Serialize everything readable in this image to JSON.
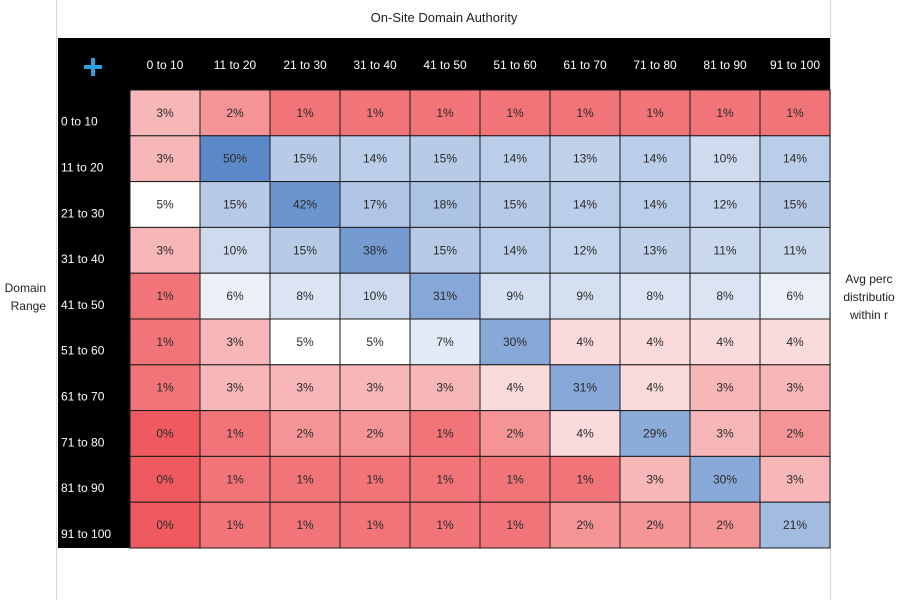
{
  "chart_data": {
    "type": "heatmap",
    "title": "On-Site Domain Authority",
    "ylabel": "Domain\nRange",
    "right_label": "Avg perc\ndistributio\nwithin r",
    "corner_icon": "plus-icon",
    "x_categories": [
      "0 to 10",
      "11 to 20",
      "21 to 30",
      "31 to 40",
      "41 to 50",
      "51 to 60",
      "61 to 70",
      "71 to 80",
      "81 to 90",
      "91 to 100"
    ],
    "y_categories": [
      "0 to 10",
      "11 to 20",
      "21 to 30",
      "31 to 40",
      "41 to 50",
      "51 to 60",
      "61 to 70",
      "71 to 80",
      "81 to 90",
      "91 to 100"
    ],
    "values": [
      [
        3,
        2,
        1,
        1,
        1,
        1,
        1,
        1,
        1,
        1
      ],
      [
        3,
        50,
        15,
        14,
        15,
        14,
        13,
        14,
        10,
        14
      ],
      [
        5,
        15,
        42,
        17,
        18,
        15,
        14,
        14,
        12,
        15
      ],
      [
        3,
        10,
        15,
        38,
        15,
        14,
        12,
        13,
        11,
        11
      ],
      [
        1,
        6,
        8,
        10,
        31,
        9,
        9,
        8,
        8,
        6
      ],
      [
        1,
        3,
        5,
        5,
        7,
        30,
        4,
        4,
        4,
        4
      ],
      [
        1,
        3,
        3,
        3,
        3,
        4,
        31,
        4,
        3,
        3
      ],
      [
        0,
        1,
        2,
        2,
        1,
        2,
        4,
        29,
        3,
        2
      ],
      [
        0,
        1,
        1,
        1,
        1,
        1,
        1,
        3,
        30,
        3
      ],
      [
        0,
        1,
        1,
        1,
        1,
        1,
        2,
        2,
        2,
        21
      ]
    ],
    "value_suffix": "%",
    "colors": {
      "low": "#ee5a60",
      "mid": "#ffffff",
      "high": "#5b88c9",
      "header_bg": "#000000",
      "header_text": "#ffffff",
      "icon": "#2ba3e0"
    }
  }
}
